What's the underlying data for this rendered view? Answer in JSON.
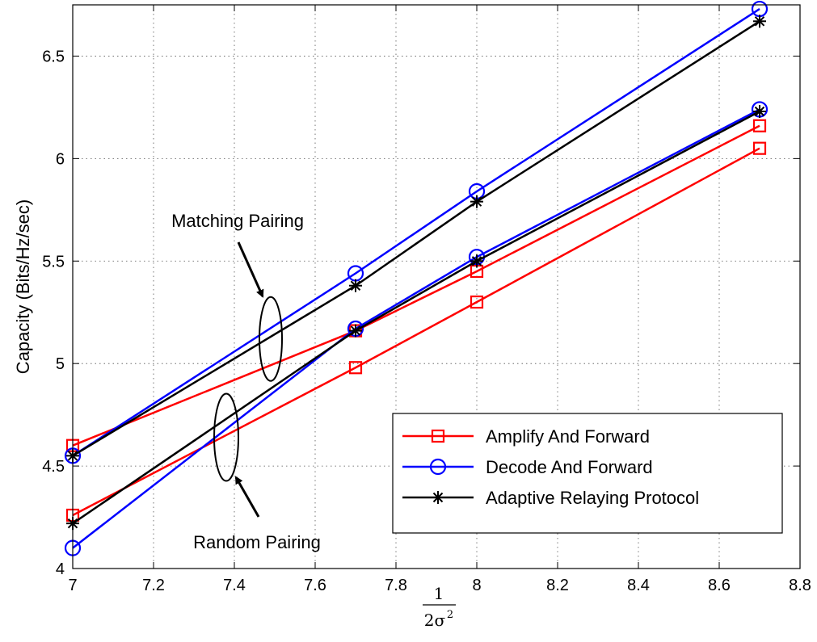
{
  "chart_data": {
    "type": "line",
    "title": "",
    "xlabel": {
      "numerator": "1",
      "denominator_base": "2σ",
      "denominator_exp": "2"
    },
    "ylabel": "Capacity (Bits/Hz/sec)",
    "xlim": [
      7,
      8.8
    ],
    "ylim": [
      4,
      6.75
    ],
    "xticks": [
      7,
      7.2,
      7.4,
      7.6,
      7.8,
      8,
      8.2,
      8.4,
      8.6,
      8.8
    ],
    "xtick_labels": [
      "7",
      "7.2",
      "7.4",
      "7.6",
      "7.8",
      "8",
      "8.2",
      "8.4",
      "8.6",
      "8.8"
    ],
    "yticks": [
      4,
      4.5,
      5,
      5.5,
      6,
      6.5
    ],
    "ytick_labels": [
      "4",
      "4.5",
      "5",
      "5.5",
      "6",
      "6.5"
    ],
    "grid": true,
    "legend_position": "bottom-right",
    "x": [
      7,
      7.7,
      8,
      8.7
    ],
    "series": [
      {
        "name": "Amplify And Forward",
        "group": "matching",
        "color": "#ff0000",
        "marker": "square",
        "values": [
          4.6,
          5.16,
          5.45,
          6.16
        ]
      },
      {
        "name": "Amplify And Forward",
        "group": "random",
        "color": "#ff0000",
        "marker": "square",
        "values": [
          4.26,
          4.98,
          5.3,
          6.05
        ]
      },
      {
        "name": "Decode And Forward",
        "group": "matching",
        "color": "#0000ff",
        "marker": "circle",
        "values": [
          4.55,
          5.44,
          5.84,
          6.73
        ]
      },
      {
        "name": "Decode And Forward",
        "group": "random",
        "color": "#0000ff",
        "marker": "circle",
        "values": [
          4.1,
          5.17,
          5.52,
          6.24
        ]
      },
      {
        "name": "Adaptive Relaying Protocol",
        "group": "matching",
        "color": "#000000",
        "marker": "asterisk",
        "values": [
          4.55,
          5.38,
          5.79,
          6.67
        ]
      },
      {
        "name": "Adaptive Relaying Protocol",
        "group": "random",
        "color": "#000000",
        "marker": "asterisk",
        "values": [
          4.22,
          5.16,
          5.5,
          6.23
        ]
      }
    ],
    "legend": [
      {
        "label": "Amplify And Forward",
        "color": "#ff0000",
        "marker": "square"
      },
      {
        "label": "Decode And Forward",
        "color": "#0000ff",
        "marker": "circle"
      },
      {
        "label": "Adaptive Relaying Protocol",
        "color": "#000000",
        "marker": "asterisk"
      }
    ],
    "annotations": [
      {
        "text": "Matching Pairing",
        "points_to": {
          "x": 7.49,
          "y": 5.12
        }
      },
      {
        "text": "Random Pairing",
        "points_to": {
          "x": 7.38,
          "y": 4.64
        }
      }
    ]
  }
}
